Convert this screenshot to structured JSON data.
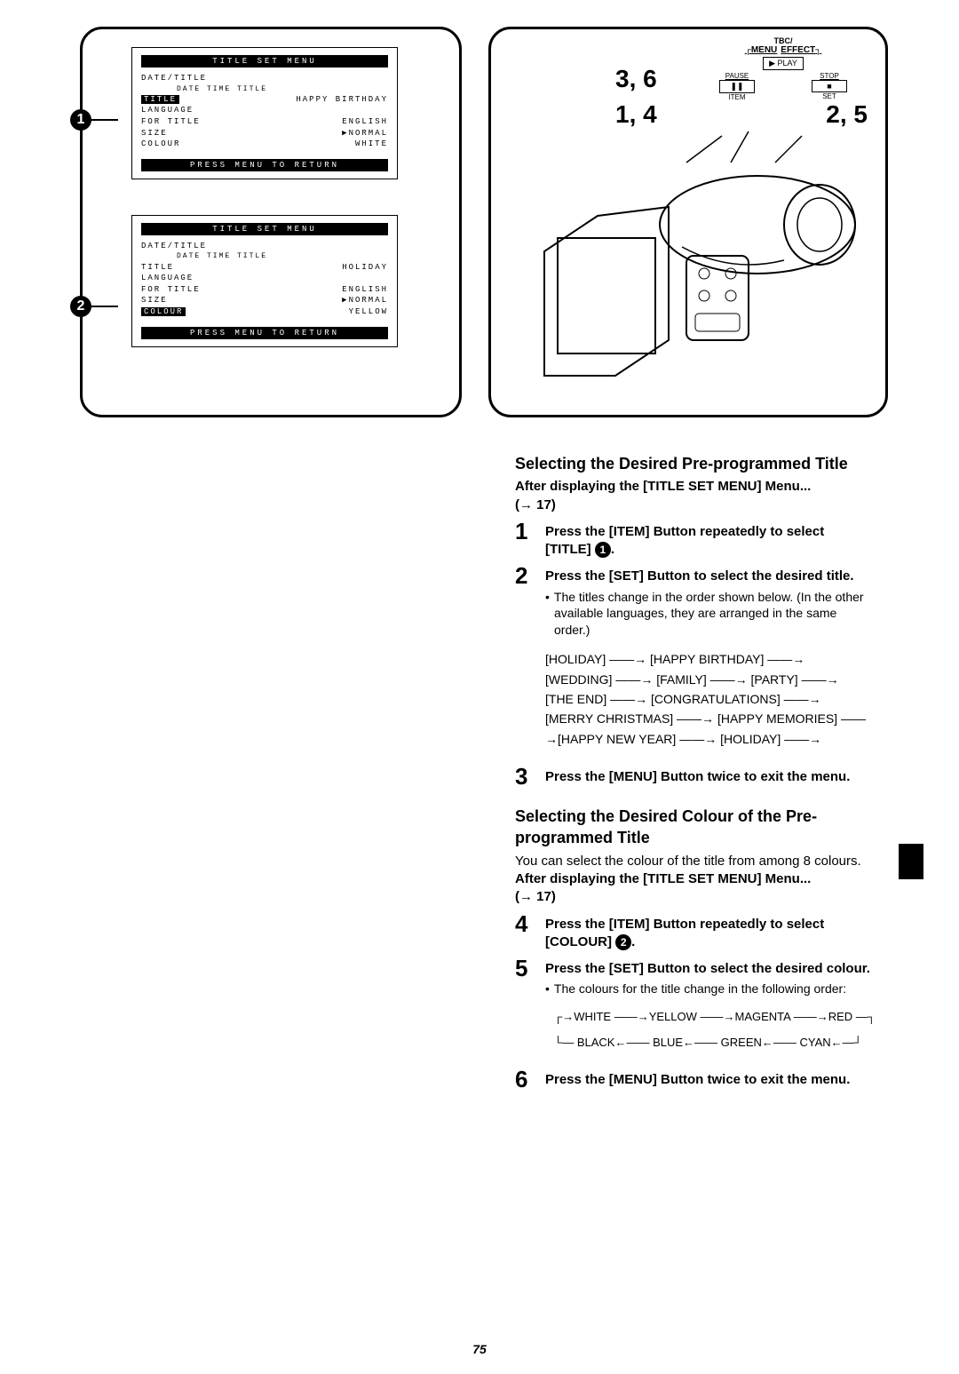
{
  "menu1": {
    "title": "TITLE SET MENU",
    "rows": [
      {
        "k": "DATE/TITLE",
        "v": ""
      },
      {
        "k": "",
        "sub": "DATE TIME  TITLE",
        "v": ""
      },
      {
        "k": "TITLE",
        "hl": true,
        "v": "HAPPY BIRTHDAY"
      },
      {
        "k": "LANGUAGE",
        "v": ""
      },
      {
        "k": "FOR TITLE",
        "v": "ENGLISH"
      },
      {
        "k": "SIZE",
        "v": "▶NORMAL"
      },
      {
        "k": "COLOUR",
        "v": "WHITE"
      }
    ],
    "footer": "PRESS MENU TO RETURN",
    "callout": "1"
  },
  "menu2": {
    "title": "TITLE SET MENU",
    "rows": [
      {
        "k": "DATE/TITLE",
        "v": ""
      },
      {
        "k": "",
        "sub": "DATE TIME  TITLE",
        "v": ""
      },
      {
        "k": "TITLE",
        "v": "HOLIDAY"
      },
      {
        "k": "LANGUAGE",
        "v": ""
      },
      {
        "k": "FOR TITLE",
        "v": "ENGLISH"
      },
      {
        "k": "SIZE",
        "v": "▶NORMAL"
      },
      {
        "k": "COLOUR",
        "hl": true,
        "v": "YELLOW"
      }
    ],
    "footer": "PRESS MENU TO RETURN",
    "callout": "2"
  },
  "buttons": {
    "top_label": "TBC/",
    "row1a": "MENU",
    "row1b": "EFFECT",
    "play": "▶ PLAY",
    "pause": "PAUSE",
    "stop": "STOP",
    "pause_icon": "❚❚",
    "stop_icon": "■",
    "item": "ITEM",
    "set": "SET",
    "nums_36": "3, 6",
    "nums_14": "1, 4",
    "nums_25": "2, 5"
  },
  "section1": {
    "heading": "Selecting the Desired Pre-programmed Title",
    "after": "After displaying the [TITLE SET MENU] Menu...",
    "ref": "(→ 17)",
    "step1a": "Press the [ITEM] Button repeatedly to select [TITLE] ",
    "step1b": ".",
    "badge1": "1",
    "step2": "Press the [SET] Button to select the desired title.",
    "step2_note": "The titles change in the order shown below. (In the other available languages, they are arranged in the same order.)",
    "cycle": "[HOLIDAY] ——→ [HAPPY BIRTHDAY] ——→ [WEDDING] ——→ [FAMILY] ——→ [PARTY] ——→ [THE END] ——→ [CONGRATULATIONS] ——→ [MERRY CHRISTMAS] ——→ [HAPPY MEMORIES] ——→[HAPPY NEW YEAR] ——→ [HOLIDAY] ——→",
    "step3": "Press the [MENU] Button twice to exit the menu."
  },
  "section2": {
    "heading": "Selecting the Desired Colour of the Pre-programmed Title",
    "intro": "You can select the colour of the title from among 8 colours.",
    "after": "After displaying the [TITLE SET MENU] Menu...",
    "ref": "(→ 17)",
    "step4a": "Press the [ITEM] Button repeatedly to select [COLOUR] ",
    "step4b": ".",
    "badge2": "2",
    "step5": "Press the [SET] Button to select the desired colour.",
    "step5_note": "The colours for the title change in the following order:",
    "cycle_top": "→WHITE ——→YELLOW ——→MAGENTA ——→RED —",
    "cycle_bot": "— BLACK←—— BLUE←—— GREEN←—— CYAN←—",
    "step6": "Press the [MENU] Button twice to exit the menu."
  },
  "page_number": "75"
}
